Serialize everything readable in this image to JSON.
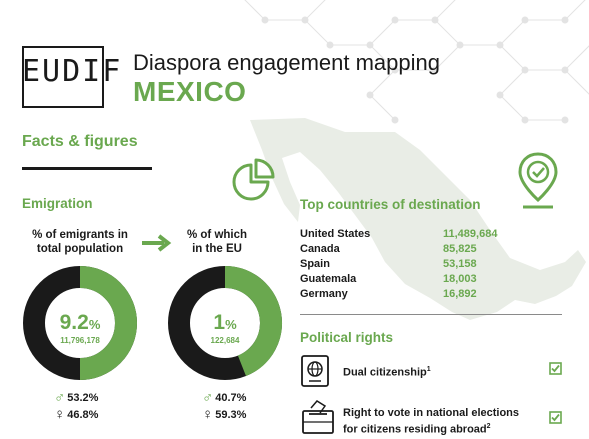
{
  "header": {
    "logo_text": "EUDIF",
    "title": "Diaspora engagement mapping",
    "country": "MEXICO"
  },
  "facts": {
    "title": "Facts & figures"
  },
  "emigration": {
    "title": "Emigration",
    "emigrants": {
      "label_line1": "% of emigrants in",
      "label_line2": "total population",
      "percent_value": "9.2",
      "percent_sign": "%",
      "percent_fraction": 0.092,
      "count": "11,796,178",
      "male_percent": "53.2%",
      "female_percent": "46.8%"
    },
    "eu": {
      "label_line1": "% of which",
      "label_line2": "in the EU",
      "percent_value": "1",
      "percent_sign": "%",
      "percent_fraction": 0.01,
      "count": "122,684",
      "male_percent": "40.7%",
      "female_percent": "59.3%"
    }
  },
  "destinations": {
    "title": "Top countries of destination",
    "rows": [
      {
        "country": "United States",
        "value": "11,489,684"
      },
      {
        "country": "Canada",
        "value": "85,825"
      },
      {
        "country": "Spain",
        "value": "53,158"
      },
      {
        "country": "Guatemala",
        "value": "18,003"
      },
      {
        "country": "Germany",
        "value": "16,892"
      }
    ]
  },
  "political": {
    "title": "Political rights",
    "dual_citizenship": "Dual citizenship",
    "dual_sup": "1",
    "vote_line1": "Right to vote in national elections",
    "vote_line2": "for citizens residing abroad",
    "vote_sup": "2"
  },
  "colors": {
    "accent": "#6aa84f",
    "dark": "#1a1a1a"
  },
  "icons": [
    "pie-chart-icon",
    "map-pin-check-icon",
    "passport-icon",
    "ballot-box-icon",
    "checkbox-checked-icon",
    "arrow-right-icon",
    "male-icon",
    "female-icon"
  ]
}
